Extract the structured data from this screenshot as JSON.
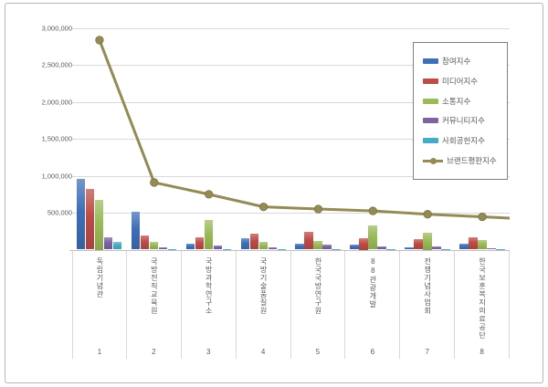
{
  "chart_data": {
    "type": "bar+line",
    "title": "",
    "categories": [
      "독립기념관",
      "국방전직교육원",
      "국방과학연구소",
      "국방기술품질원",
      "한국국방연구원",
      "88관광개발",
      "전쟁기념사업회",
      "한국보훈복지의료공단"
    ],
    "category_ranks": [
      "1",
      "2",
      "3",
      "4",
      "5",
      "6",
      "7",
      "8"
    ],
    "bar_series": [
      {
        "name": "참여지수",
        "color": "#3e6fb7",
        "values": [
          960000,
          515000,
          85000,
          160000,
          80000,
          70000,
          30000,
          85000
        ]
      },
      {
        "name": "미디어지수",
        "color": "#bf4b47",
        "values": [
          820000,
          195000,
          165000,
          215000,
          245000,
          150000,
          140000,
          165000
        ]
      },
      {
        "name": "소통지수",
        "color": "#9bbb59",
        "values": [
          675000,
          110000,
          400000,
          110000,
          115000,
          330000,
          225000,
          130000
        ]
      },
      {
        "name": "커뮤니티지수",
        "color": "#7d62a5",
        "values": [
          165000,
          25000,
          60000,
          30000,
          65000,
          40000,
          40000,
          20000
        ]
      },
      {
        "name": "사회공헌지수",
        "color": "#45acc8",
        "values": [
          110000,
          10000,
          8000,
          8000,
          10000,
          6000,
          5000,
          8000
        ]
      }
    ],
    "line_series": {
      "name": "브랜드평판지수",
      "color": "#948a54",
      "values": [
        2840000,
        910000,
        750000,
        580000,
        550000,
        525000,
        480000,
        445000
      ]
    },
    "ylim": [
      0,
      3000000
    ],
    "ytick_step": 500000,
    "yticks": [
      {
        "value": 0,
        "label": "-"
      },
      {
        "value": 500000,
        "label": "500,000"
      },
      {
        "value": 1000000,
        "label": "1,000,000"
      },
      {
        "value": 1500000,
        "label": "1,500,000"
      },
      {
        "value": 2000000,
        "label": "2,000,000"
      },
      {
        "value": 2500000,
        "label": "2,500,000"
      },
      {
        "value": 3000000,
        "label": "3,000,000"
      }
    ],
    "grid": true,
    "legend_position": "top-right"
  },
  "colors": {
    "frame_border": "#b5b5b5",
    "grid": "#d9d9d9",
    "axis": "#c0c0c0",
    "text": "#595959",
    "legend_border": "#7f7f7f",
    "background": "#ffffff"
  }
}
